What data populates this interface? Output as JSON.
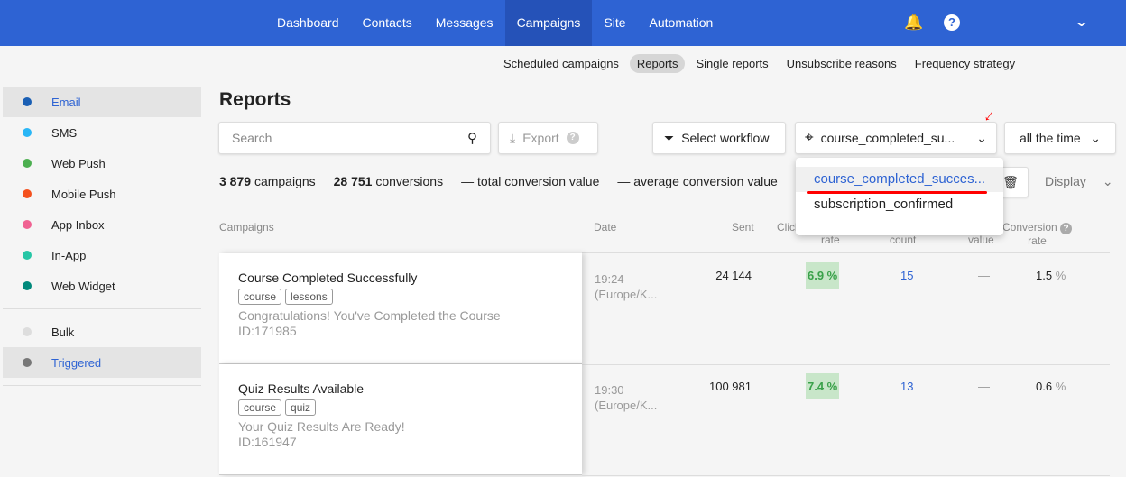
{
  "nav": {
    "items": [
      "Dashboard",
      "Contacts",
      "Messages",
      "Campaigns",
      "Site",
      "Automation"
    ],
    "active": "Campaigns"
  },
  "subnav": {
    "items": [
      "Scheduled campaigns",
      "Reports",
      "Single reports",
      "Unsubscribe reasons",
      "Frequency strategy"
    ],
    "active": "Reports"
  },
  "sidebar": {
    "channels": [
      {
        "label": "Email",
        "color": "#1a5fb4"
      },
      {
        "label": "SMS",
        "color": "#29b6f6"
      },
      {
        "label": "Web Push",
        "color": "#4caf50"
      },
      {
        "label": "Mobile Push",
        "color": "#f4511e"
      },
      {
        "label": "App Inbox",
        "color": "#f06292"
      },
      {
        "label": "In-App",
        "color": "#26c6a6"
      },
      {
        "label": "Web Widget",
        "color": "#00897b"
      }
    ],
    "types": [
      {
        "label": "Bulk",
        "color": "#dddddd"
      },
      {
        "label": "Triggered",
        "color": "#777777"
      }
    ]
  },
  "page_title": "Reports",
  "toolbar": {
    "search_placeholder": "Search",
    "export": "Export",
    "select_workflow": "Select workflow",
    "event": "course_completed_su...",
    "period": "all the time",
    "display": "Display"
  },
  "stats": {
    "campaigns_count": "3 879",
    "campaigns_label": "campaigns",
    "conversions_count": "28 751",
    "conversions_label": "conversions",
    "total_value": "— total conversion value",
    "average_value": "— average conversion value"
  },
  "dropdown": {
    "options": [
      "course_completed_succes...",
      "subscription_confirmed"
    ],
    "selected": 0
  },
  "table": {
    "headers": {
      "campaigns": "Campaigns",
      "date": "Date",
      "sent": "Sent",
      "click": "Click",
      "click2": "rate",
      "conv_count": "count",
      "conv_value": "value",
      "conv_rate": "Conversion",
      "conv_rate2": "rate"
    },
    "rows": [
      {
        "title": "Course Completed Successfully",
        "tags": [
          "course",
          "lessons"
        ],
        "subject": "Congratulations! You've Completed the Course",
        "id": "ID:171985",
        "time": "19:24",
        "tz": "(Europe/K...",
        "sent": "24 144",
        "click_rate": "6.9 %",
        "conv_count": "15",
        "conv_value": "—",
        "conv_rate": "1.5",
        "pct": "%"
      },
      {
        "title": "Quiz Results Available",
        "tags": [
          "course",
          "quiz"
        ],
        "subject": "Your Quiz Results Are Ready!",
        "id": "ID:161947",
        "time": "19:30",
        "tz": "(Europe/K...",
        "sent": "100 981",
        "click_rate": "7.4 %",
        "conv_count": "13",
        "conv_value": "—",
        "conv_rate": "0.6",
        "pct": "%"
      }
    ]
  }
}
